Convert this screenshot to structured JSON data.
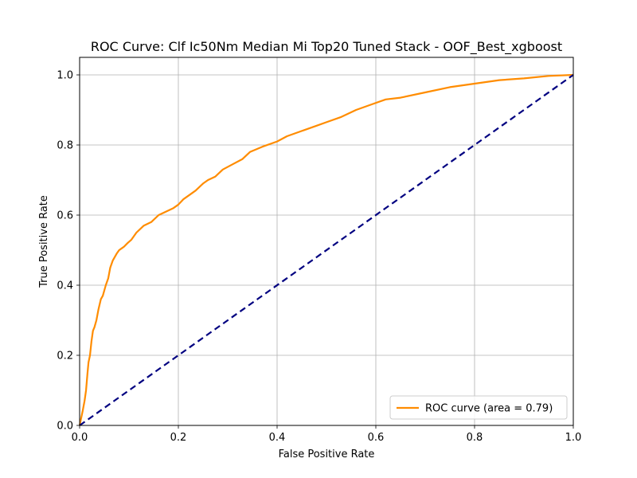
{
  "chart_data": {
    "type": "line",
    "title": "ROC Curve: Clf Ic50Nm Median Mi Top20 Tuned Stack - OOF_Best_xgboost",
    "xlabel": "False Positive Rate",
    "ylabel": "True Positive Rate",
    "xlim": [
      0.0,
      1.0
    ],
    "ylim": [
      0.0,
      1.05
    ],
    "xticks": [
      "0.0",
      "0.2",
      "0.4",
      "0.6",
      "0.8",
      "1.0"
    ],
    "yticks": [
      "0.0",
      "0.2",
      "0.4",
      "0.6",
      "0.8",
      "1.0"
    ],
    "grid": true,
    "legend_position": "lower-right",
    "series": [
      {
        "name": "ROC curve (area = 0.79)",
        "color": "#ff8c00",
        "style": "solid",
        "x": [
          0.0,
          0.003,
          0.006,
          0.01,
          0.013,
          0.016,
          0.018,
          0.021,
          0.024,
          0.027,
          0.03,
          0.034,
          0.038,
          0.043,
          0.047,
          0.053,
          0.058,
          0.062,
          0.067,
          0.071,
          0.075,
          0.08,
          0.085,
          0.09,
          0.097,
          0.105,
          0.11,
          0.115,
          0.13,
          0.145,
          0.16,
          0.175,
          0.19,
          0.2,
          0.21,
          0.22,
          0.235,
          0.25,
          0.26,
          0.275,
          0.29,
          0.31,
          0.33,
          0.345,
          0.37,
          0.4,
          0.42,
          0.45,
          0.48,
          0.5,
          0.53,
          0.56,
          0.59,
          0.62,
          0.65,
          0.7,
          0.75,
          0.8,
          0.85,
          0.9,
          0.95,
          1.0
        ],
        "y": [
          0.0,
          0.02,
          0.04,
          0.07,
          0.1,
          0.15,
          0.18,
          0.2,
          0.24,
          0.27,
          0.28,
          0.3,
          0.33,
          0.36,
          0.37,
          0.4,
          0.42,
          0.45,
          0.47,
          0.48,
          0.49,
          0.5,
          0.505,
          0.51,
          0.52,
          0.53,
          0.54,
          0.55,
          0.57,
          0.58,
          0.6,
          0.61,
          0.62,
          0.63,
          0.645,
          0.655,
          0.67,
          0.69,
          0.7,
          0.71,
          0.73,
          0.745,
          0.76,
          0.78,
          0.795,
          0.81,
          0.825,
          0.84,
          0.855,
          0.865,
          0.88,
          0.9,
          0.915,
          0.93,
          0.935,
          0.95,
          0.965,
          0.975,
          0.985,
          0.99,
          0.997,
          1.0
        ]
      },
      {
        "name": "",
        "color": "#000080",
        "style": "dashed",
        "x": [
          0.0,
          1.0
        ],
        "y": [
          0.0,
          1.0
        ]
      }
    ]
  }
}
